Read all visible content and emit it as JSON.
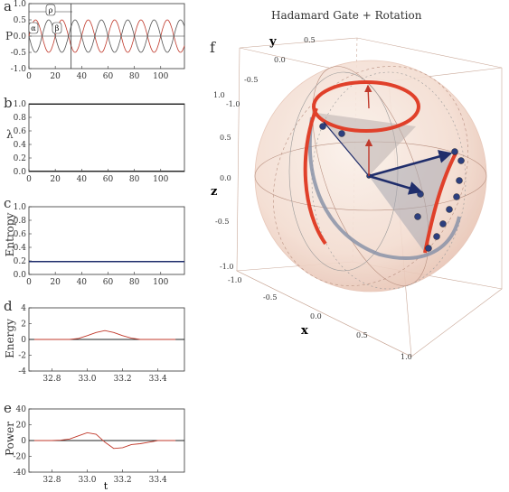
{
  "panels": {
    "a": {
      "letter": "a",
      "ylabel": "P",
      "yticks": [
        "1.0",
        "0.5",
        "0.0",
        "-0.5",
        "-1.0"
      ],
      "xticks": [
        "0",
        "20",
        "40",
        "60",
        "80",
        "100"
      ],
      "markers": [
        "α",
        "ρ",
        "β"
      ]
    },
    "b": {
      "letter": "b",
      "ylabel": "λ",
      "yticks": [
        "1.0",
        "0.8",
        "0.6",
        "0.4",
        "0.2",
        "0.0"
      ],
      "xticks": [
        "0",
        "20",
        "40",
        "60",
        "80",
        "100"
      ]
    },
    "c": {
      "letter": "c",
      "ylabel": "Entropy",
      "yticks": [
        "1.0",
        "0.8",
        "0.6",
        "0.4",
        "0.2",
        "0.0"
      ],
      "xticks": [
        "0",
        "20",
        "40",
        "60",
        "80",
        "100"
      ]
    },
    "d": {
      "letter": "d",
      "ylabel": "Energy",
      "yticks": [
        "4",
        "2",
        "0",
        "-2",
        "-4"
      ],
      "xticks": [
        "32.8",
        "33.0",
        "33.2",
        "33.4"
      ]
    },
    "e": {
      "letter": "e",
      "ylabel": "Power",
      "xlabel": "t",
      "yticks": [
        "40",
        "20",
        "0",
        "-20",
        "-40"
      ],
      "xticks": [
        "32.8",
        "33.0",
        "33.2",
        "33.4"
      ]
    },
    "f": {
      "letter": "f",
      "title": "Hadamard Gate + Rotation",
      "xlabel": "x",
      "ylabel": "y",
      "zlabel": "z",
      "x_ticks": [
        "-1.0",
        "-0.5",
        "0.0",
        "0.5",
        "1.0"
      ],
      "y_ticks": [
        "0.5",
        "0.0",
        "-0.5",
        "-1.0"
      ],
      "z_ticks": [
        "1.0",
        "0.5",
        "0.0",
        "-0.5",
        "-1.0"
      ]
    }
  },
  "chart_data": [
    {
      "type": "line",
      "panel": "a",
      "ylabel": "P",
      "xlim": [
        0,
        118
      ],
      "ylim": [
        -1,
        1
      ],
      "series": [
        {
          "color": "#c0392b",
          "amplitude": 0.5,
          "period": 20,
          "phase": 0
        },
        {
          "color": "#555555",
          "amplitude": 0.5,
          "period": 20,
          "phase": 10
        }
      ],
      "vline": 32
    },
    {
      "type": "line",
      "panel": "b",
      "ylabel": "λ",
      "xlim": [
        0,
        118
      ],
      "ylim": [
        0,
        1
      ],
      "series": [
        {
          "y": 0.995,
          "color": "#222"
        },
        {
          "y": 0.005,
          "color": "#222"
        }
      ]
    },
    {
      "type": "line",
      "panel": "c",
      "ylabel": "Entropy",
      "xlim": [
        0,
        118
      ],
      "ylim": [
        0,
        1
      ],
      "series": [
        {
          "y": 0.19,
          "color": "#1f2d6b"
        }
      ]
    },
    {
      "type": "line",
      "panel": "d",
      "ylabel": "Energy",
      "xlim": [
        32.67,
        33.55
      ],
      "ylim": [
        -5,
        5
      ],
      "series": [
        {
          "name": "energy",
          "color": "#c0392b",
          "x": [
            32.7,
            32.9,
            32.95,
            33.0,
            33.05,
            33.1,
            33.15,
            33.2,
            33.25,
            33.3,
            33.5
          ],
          "y": [
            0,
            0,
            0.15,
            0.6,
            1.1,
            1.4,
            1.1,
            0.6,
            0.2,
            0,
            0
          ]
        }
      ]
    },
    {
      "type": "line",
      "panel": "e",
      "ylabel": "Power",
      "xlabel": "t",
      "xlim": [
        32.67,
        33.55
      ],
      "ylim": [
        -40,
        40
      ],
      "series": [
        {
          "name": "power",
          "color": "#c0392b",
          "x": [
            32.7,
            32.8,
            32.85,
            32.9,
            32.95,
            33.0,
            33.05,
            33.1,
            33.15,
            33.2,
            33.25,
            33.3,
            33.35,
            33.4,
            33.5
          ],
          "y": [
            0,
            0,
            0.5,
            2,
            6,
            10,
            8,
            -2,
            -10,
            -9,
            -5,
            -4,
            -2,
            0,
            0
          ]
        }
      ]
    }
  ],
  "colors": {
    "red": "#e0402a",
    "navy": "#1f2d6b",
    "sphere": "#f3d9cc",
    "grey": "#8a8a8a"
  }
}
